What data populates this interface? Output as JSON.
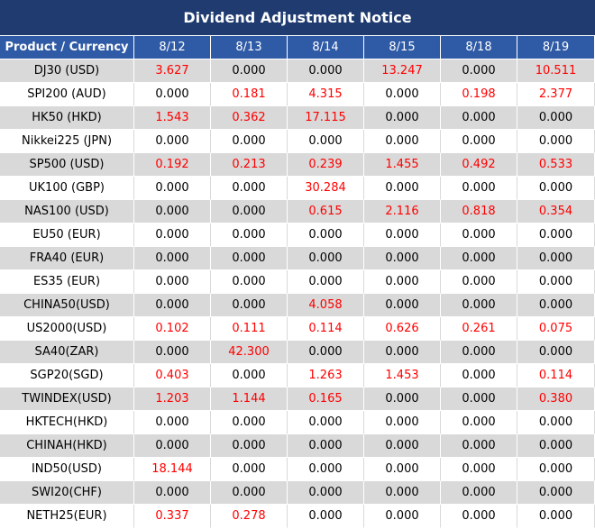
{
  "header": {
    "title": "Dividend Adjustment Notice"
  },
  "table": {
    "columns": [
      "Product / Currency",
      "8/12",
      "8/13",
      "8/14",
      "8/15",
      "8/18",
      "8/19"
    ],
    "rows": [
      [
        "DJ30 (USD)",
        "3.627",
        "0.000",
        "0.000",
        "13.247",
        "0.000",
        "10.511"
      ],
      [
        "SPI200 (AUD)",
        "0.000",
        "0.181",
        "4.315",
        "0.000",
        "0.198",
        "2.377"
      ],
      [
        "HK50 (HKD)",
        "1.543",
        "0.362",
        "17.115",
        "0.000",
        "0.000",
        "0.000"
      ],
      [
        "Nikkei225 (JPN)",
        "0.000",
        "0.000",
        "0.000",
        "0.000",
        "0.000",
        "0.000"
      ],
      [
        "SP500 (USD)",
        "0.192",
        "0.213",
        "0.239",
        "1.455",
        "0.492",
        "0.533"
      ],
      [
        "UK100 (GBP)",
        "0.000",
        "0.000",
        "30.284",
        "0.000",
        "0.000",
        "0.000"
      ],
      [
        "NAS100 (USD)",
        "0.000",
        "0.000",
        "0.615",
        "2.116",
        "0.818",
        "0.354"
      ],
      [
        "EU50 (EUR)",
        "0.000",
        "0.000",
        "0.000",
        "0.000",
        "0.000",
        "0.000"
      ],
      [
        "FRA40 (EUR)",
        "0.000",
        "0.000",
        "0.000",
        "0.000",
        "0.000",
        "0.000"
      ],
      [
        "ES35 (EUR)",
        "0.000",
        "0.000",
        "0.000",
        "0.000",
        "0.000",
        "0.000"
      ],
      [
        "CHINA50(USD)",
        "0.000",
        "0.000",
        "4.058",
        "0.000",
        "0.000",
        "0.000"
      ],
      [
        "US2000(USD)",
        "0.102",
        "0.111",
        "0.114",
        "0.626",
        "0.261",
        "0.075"
      ],
      [
        "SA40(ZAR)",
        "0.000",
        "42.300",
        "0.000",
        "0.000",
        "0.000",
        "0.000"
      ],
      [
        "SGP20(SGD)",
        "0.403",
        "0.000",
        "1.263",
        "1.453",
        "0.000",
        "0.114"
      ],
      [
        "TWINDEX(USD)",
        "1.203",
        "1.144",
        "0.165",
        "0.000",
        "0.000",
        "0.380"
      ],
      [
        "HKTECH(HKD)",
        "0.000",
        "0.000",
        "0.000",
        "0.000",
        "0.000",
        "0.000"
      ],
      [
        "CHINAH(HKD)",
        "0.000",
        "0.000",
        "0.000",
        "0.000",
        "0.000",
        "0.000"
      ],
      [
        "IND50(USD)",
        "18.144",
        "0.000",
        "0.000",
        "0.000",
        "0.000",
        "0.000"
      ],
      [
        "SWI20(CHF)",
        "0.000",
        "0.000",
        "0.000",
        "0.000",
        "0.000",
        "0.000"
      ],
      [
        "NETH25(EUR)",
        "0.337",
        "0.278",
        "0.000",
        "0.000",
        "0.000",
        "0.000"
      ]
    ]
  }
}
